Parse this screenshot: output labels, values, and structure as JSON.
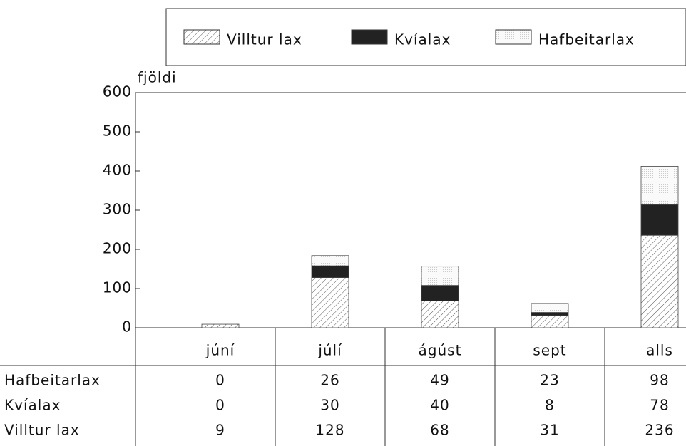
{
  "chart_data": {
    "type": "stacked_bar",
    "y_label": "fjöldi",
    "categories": [
      "júní",
      "júlí",
      "ágúst",
      "sept",
      "alls"
    ],
    "series": [
      {
        "name": "Villtur lax",
        "color": "#333333",
        "pattern": "hatch",
        "values": [
          9,
          128,
          68,
          31,
          236
        ]
      },
      {
        "name": "Kvíalax",
        "color": "#222222",
        "pattern": "solid",
        "values": [
          0,
          30,
          40,
          8,
          78
        ]
      },
      {
        "name": "Hafbeitarlax",
        "color": "#bbbbbb",
        "pattern": "dots",
        "values": [
          0,
          26,
          49,
          23,
          98
        ]
      }
    ],
    "ylim": [
      0,
      600
    ],
    "yticks": [
      0,
      100,
      200,
      300,
      400,
      500,
      600
    ]
  }
}
